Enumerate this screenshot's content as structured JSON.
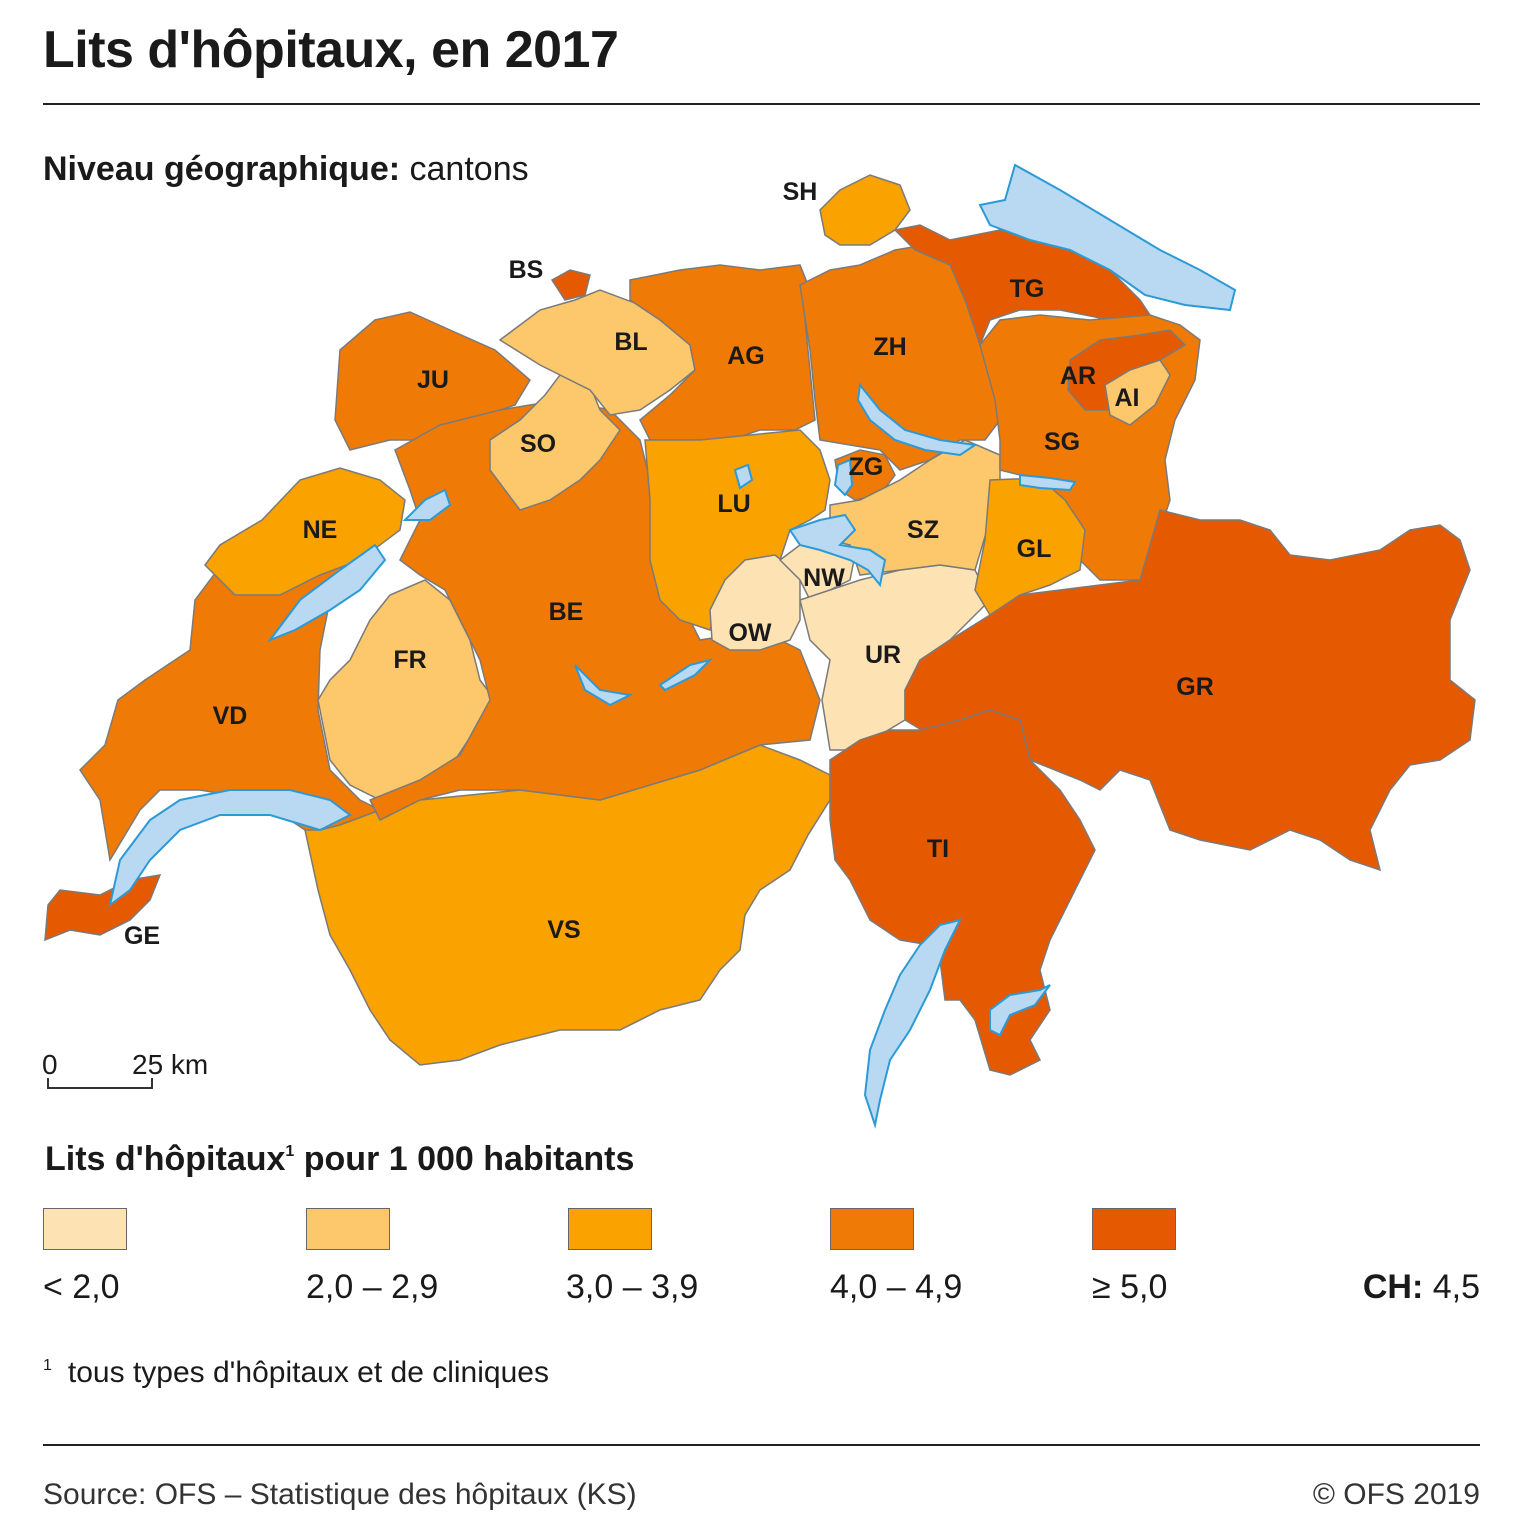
{
  "title": "Lits d'hôpitaux, en 2017",
  "geo_level": {
    "label": "Niveau géographique:",
    "value": "cantons"
  },
  "colors": {
    "class1": "#fde3b4",
    "class2": "#fcc86b",
    "class3": "#f9a200",
    "class4": "#f07a06",
    "class5": "#e55a00",
    "lake_fill": "#b9d9f2",
    "lake_stroke": "#2b9ad6"
  },
  "cantons": [
    {
      "code": "GE",
      "class": 5
    },
    {
      "code": "VD",
      "class": 4
    },
    {
      "code": "NE",
      "class": 3
    },
    {
      "code": "JU",
      "class": 4
    },
    {
      "code": "FR",
      "class": 2
    },
    {
      "code": "BE",
      "class": 4
    },
    {
      "code": "SO",
      "class": 2
    },
    {
      "code": "BS",
      "class": 5
    },
    {
      "code": "BL",
      "class": 2
    },
    {
      "code": "AG",
      "class": 4
    },
    {
      "code": "LU",
      "class": 3
    },
    {
      "code": "OW",
      "class": 1
    },
    {
      "code": "NW",
      "class": 1
    },
    {
      "code": "UR",
      "class": 1
    },
    {
      "code": "ZG",
      "class": 4
    },
    {
      "code": "SZ",
      "class": 2
    },
    {
      "code": "ZH",
      "class": 4
    },
    {
      "code": "SH",
      "class": 3
    },
    {
      "code": "TG",
      "class": 5
    },
    {
      "code": "AR",
      "class": 5
    },
    {
      "code": "AI",
      "class": 2
    },
    {
      "code": "SG",
      "class": 4
    },
    {
      "code": "GL",
      "class": 3
    },
    {
      "code": "GR",
      "class": 5
    },
    {
      "code": "TI",
      "class": 5
    },
    {
      "code": "VS",
      "class": 3
    }
  ],
  "labels": {
    "GE": "GE",
    "VD": "VD",
    "NE": "NE",
    "JU": "JU",
    "FR": "FR",
    "BE": "BE",
    "SO": "SO",
    "BS": "BS",
    "BL": "BL",
    "AG": "AG",
    "LU": "LU",
    "OW": "OW",
    "NW": "NW",
    "UR": "UR",
    "ZG": "ZG",
    "SZ": "SZ",
    "ZH": "ZH",
    "SH": "SH",
    "TG": "TG",
    "AR": "AR",
    "AI": "AI",
    "SG": "SG",
    "GL": "GL",
    "GR": "GR",
    "TI": "TI",
    "VS": "VS"
  },
  "scale": {
    "zero": "0",
    "distance": "25 km"
  },
  "legend": {
    "title": "Lits d'hôpitaux",
    "title_sup": "1",
    "title_rest": " pour 1 000 habitants",
    "classes": [
      "< 2,0",
      "2,0 – 2,9",
      "3,0 – 3,9",
      "4,0 – 4,9",
      "≥ 5,0"
    ]
  },
  "national": {
    "label": "CH:",
    "value": "4,5"
  },
  "footnote": {
    "marker": "1",
    "text": "tous types d'hôpitaux et de cliniques"
  },
  "source": "Source: OFS – Statistique des hôpitaux (KS)",
  "copyright": "© OFS 2019"
}
